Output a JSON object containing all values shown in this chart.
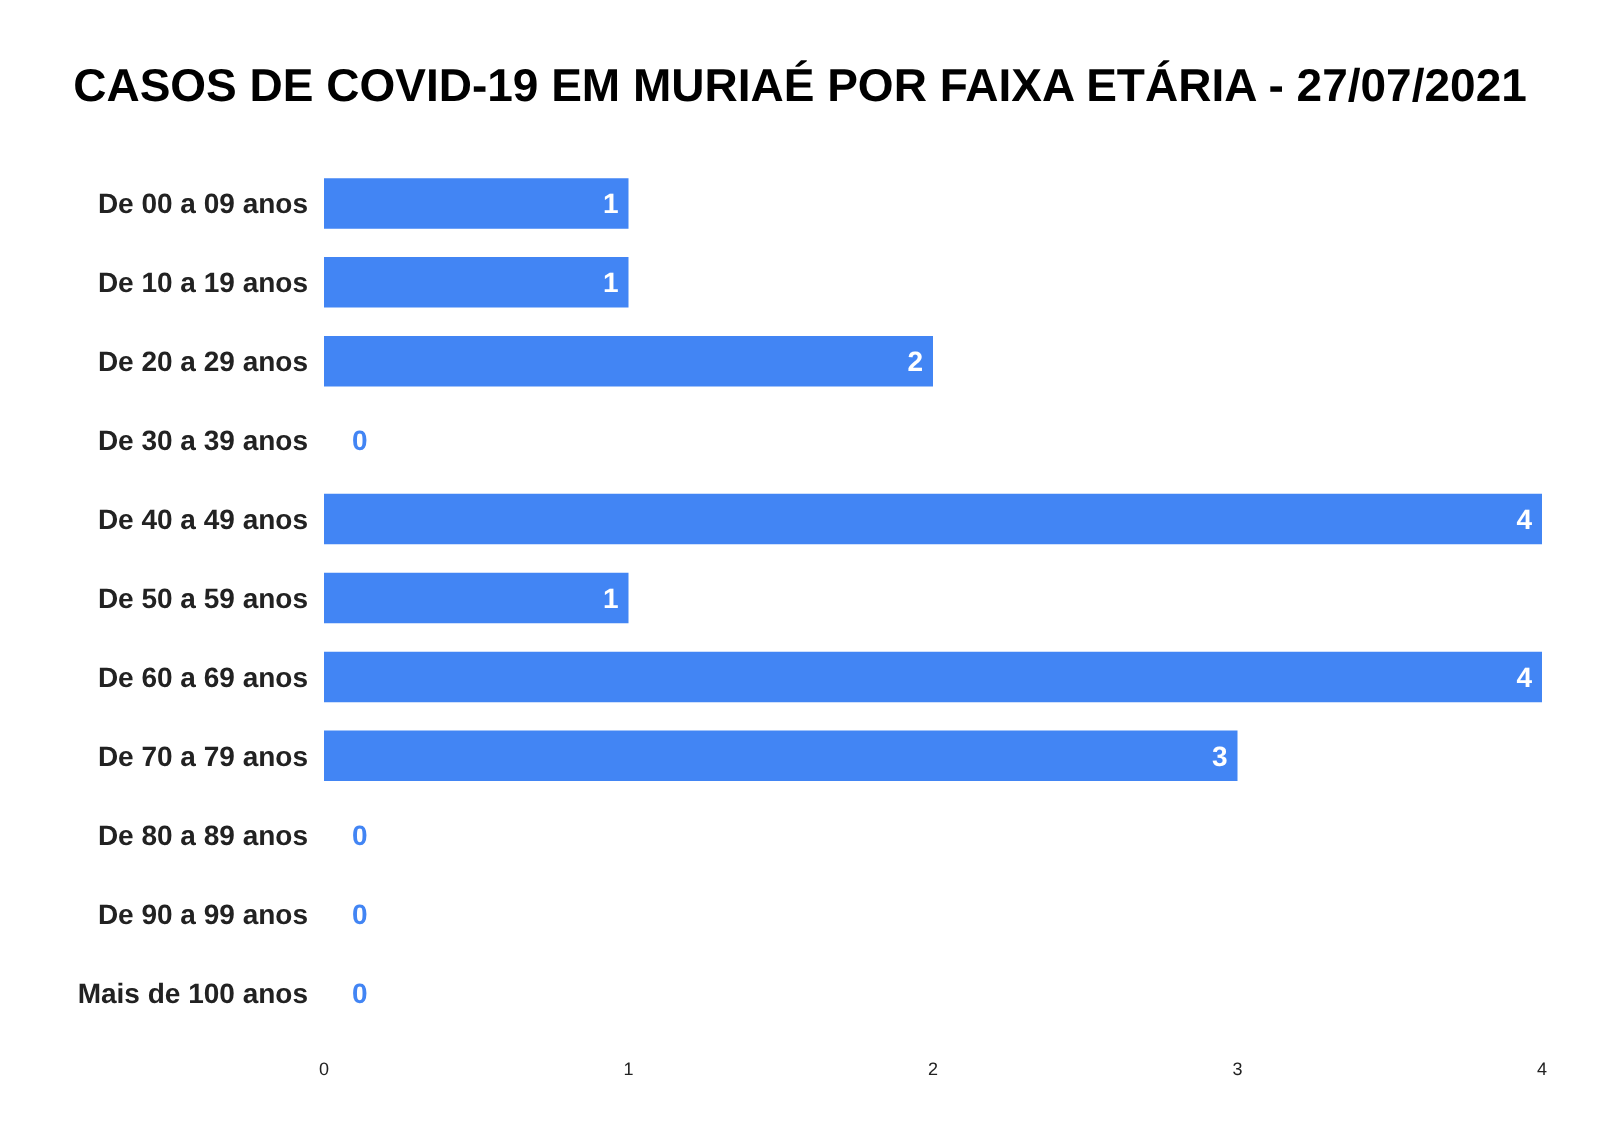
{
  "chart_data": {
    "type": "bar",
    "orientation": "horizontal",
    "title": "CASOS DE COVID-19 EM MURIAÉ POR FAIXA ETÁRIA - 27/07/2021",
    "categories": [
      "De 00 a 09 anos",
      "De 10 a 19 anos",
      "De 20 a 29 anos",
      "De 30 a 39 anos",
      "De 40 a 49 anos",
      "De 50 a 59 anos",
      "De 60 a 69 anos",
      "De 70 a 79 anos",
      "De 80 a 89 anos",
      "De 90 a 99 anos",
      "Mais de 100 anos"
    ],
    "values": [
      1,
      1,
      2,
      0,
      4,
      1,
      4,
      3,
      0,
      0,
      0
    ],
    "color": "#4285f4",
    "xlim": [
      0,
      4
    ],
    "xticks": [
      0,
      1,
      2,
      3,
      4
    ],
    "data_labels": true
  }
}
